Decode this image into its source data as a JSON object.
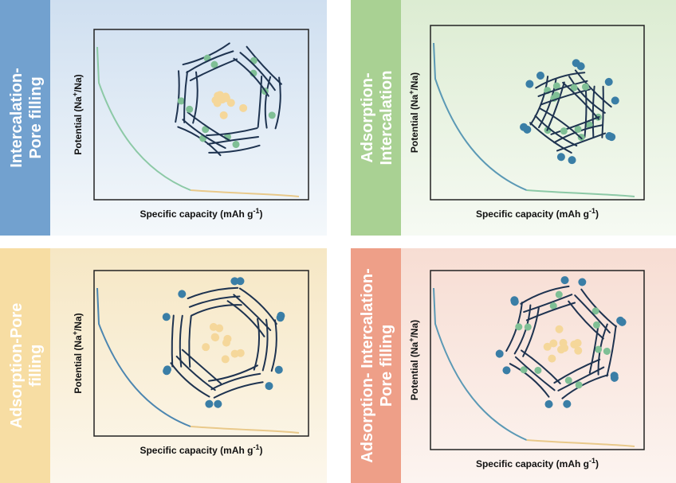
{
  "panels": [
    {
      "label": [
        "Intercalation-",
        "Pore filling"
      ],
      "y_label": [
        "Potential (Na",
        "+",
        "/Na)"
      ],
      "x_label": [
        "Specific capacity (mAh g",
        "-1",
        ")"
      ]
    },
    {
      "label": [
        "Adsorption-",
        "Intercalation"
      ],
      "y_label": [
        "Potential (Na",
        "+",
        "/Na)"
      ],
      "x_label": [
        "Specific capacity (mAh g",
        "-1",
        ")"
      ]
    },
    {
      "label": [
        "Adsorption-Pore",
        "filling"
      ],
      "y_label": [
        "Potential (Na",
        "+",
        "/Na)"
      ],
      "x_label": [
        "Specific capacity (mAh g",
        "-1",
        ")"
      ]
    },
    {
      "label": [
        "Adsorption- Intercalation-",
        "Pore filling"
      ],
      "y_label": [
        "Potential (Na",
        "+",
        "/Na)"
      ],
      "x_label": [
        "Specific capacity (mAh g",
        "-1",
        ")"
      ]
    }
  ]
}
